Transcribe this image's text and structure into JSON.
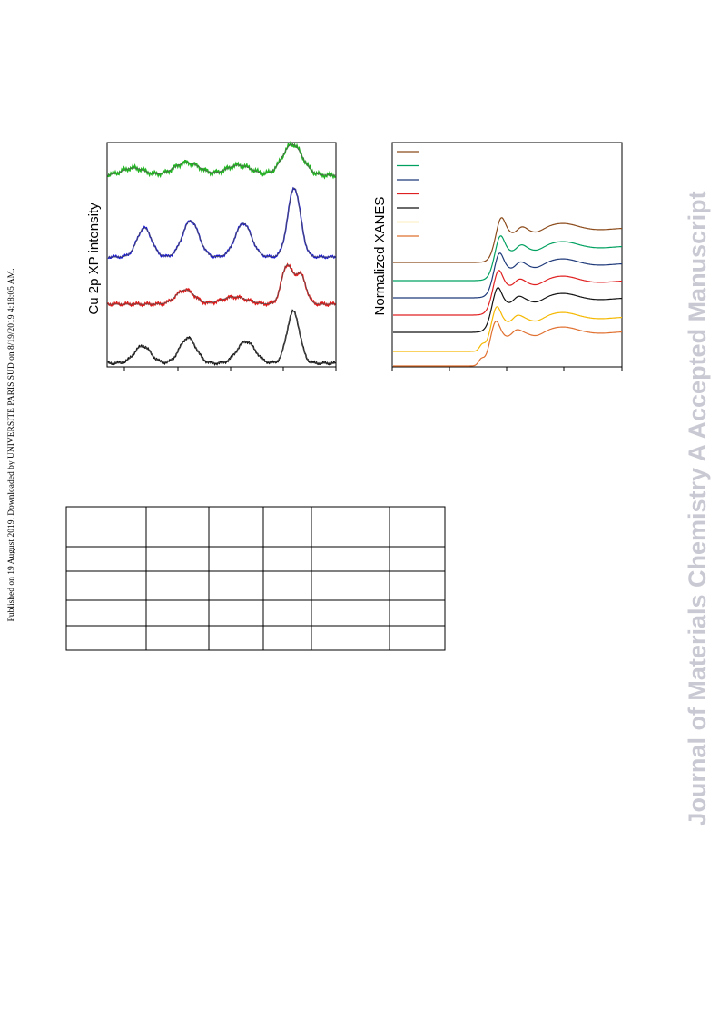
{
  "side_note": "Published on 19 August 2019. Downloaded by UNIVERSITE PARIS SUD on 8/19/2019 4:18:05 AM.",
  "watermark": "Journal of Materials Chemistry A Accepted Manuscript",
  "figure_left": {
    "y_label": "Cu 2p XP  intensity"
  },
  "figure_right": {
    "y_label": "Normalized XANES"
  }
}
